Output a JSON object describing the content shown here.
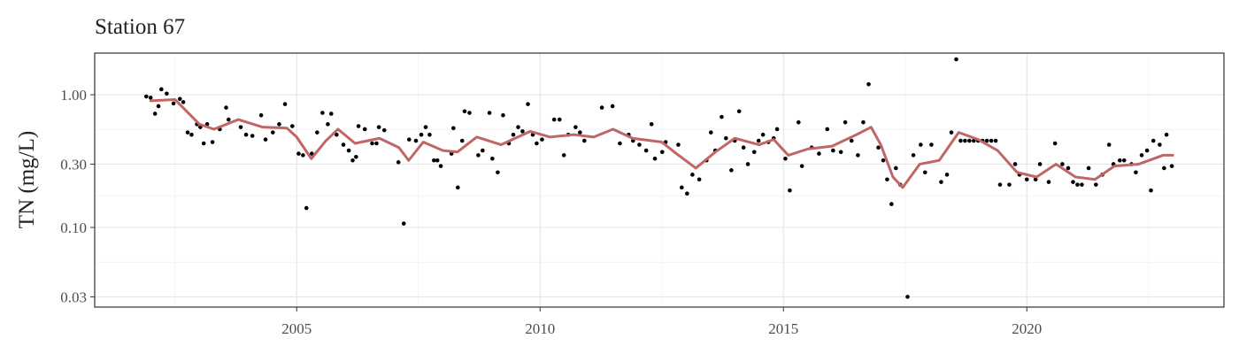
{
  "chart_data": {
    "type": "scatter",
    "title": "Station 67",
    "y_label": "TN (mg/L)",
    "log_y": true,
    "grid": true,
    "xlim": [
      2000.85,
      2024.05
    ],
    "ylim": [
      0.0251,
      2.06
    ],
    "xticks": [
      2005,
      2010,
      2015,
      2020
    ],
    "yticks": [
      {
        "value": 1,
        "label": "1.00"
      },
      {
        "value": 0.3,
        "label": "0.30"
      },
      {
        "value": 0.1,
        "label": "0.10"
      },
      {
        "value": 0.03,
        "label": "0.03"
      }
    ],
    "series": [
      {
        "type": "scatter",
        "color": "#000000",
        "x": [
          2001.91,
          2002.0,
          2002.09,
          2002.16,
          2002.22,
          2002.33,
          2002.47,
          2002.6,
          2002.67,
          2002.76,
          2002.84,
          2002.95,
          2003.02,
          2003.09,
          2003.16,
          2003.27,
          2003.42,
          2003.55,
          2003.6,
          2003.85,
          2003.96,
          2004.09,
          2004.27,
          2004.36,
          2004.51,
          2004.64,
          2004.76,
          2004.91,
          2005.04,
          2005.13,
          2005.2,
          2005.31,
          2005.42,
          2005.53,
          2005.64,
          2005.71,
          2005.82,
          2005.96,
          2006.07,
          2006.15,
          2006.22,
          2006.27,
          2006.4,
          2006.55,
          2006.64,
          2006.69,
          2006.8,
          2007.09,
          2007.2,
          2007.31,
          2007.45,
          2007.56,
          2007.65,
          2007.73,
          2007.82,
          2007.89,
          2007.96,
          2008.18,
          2008.22,
          2008.31,
          2008.4,
          2008.45,
          2008.55,
          2008.73,
          2008.82,
          2008.96,
          2009.02,
          2009.13,
          2009.24,
          2009.36,
          2009.45,
          2009.55,
          2009.64,
          2009.75,
          2009.85,
          2009.93,
          2010.04,
          2010.29,
          2010.4,
          2010.49,
          2010.58,
          2010.73,
          2010.82,
          2010.91,
          2011.27,
          2011.49,
          2011.64,
          2011.82,
          2011.91,
          2012.04,
          2012.18,
          2012.29,
          2012.36,
          2012.51,
          2012.58,
          2012.84,
          2012.91,
          2013.02,
          2013.13,
          2013.27,
          2013.42,
          2013.51,
          2013.6,
          2013.73,
          2013.82,
          2013.93,
          2014.0,
          2014.09,
          2014.18,
          2014.27,
          2014.4,
          2014.49,
          2014.58,
          2014.69,
          2014.8,
          2014.87,
          2015.04,
          2015.13,
          2015.31,
          2015.38,
          2015.58,
          2015.73,
          2015.9,
          2016.02,
          2016.18,
          2016.27,
          2016.4,
          2016.53,
          2016.64,
          2016.75,
          2016.95,
          2017.05,
          2017.13,
          2017.22,
          2017.31,
          2017.4,
          2017.55,
          2017.67,
          2017.82,
          2017.91,
          2018.04,
          2018.24,
          2018.36,
          2018.45,
          2018.55,
          2018.64,
          2018.73,
          2018.82,
          2018.91,
          2019.0,
          2019.09,
          2019.18,
          2019.27,
          2019.36,
          2019.45,
          2019.64,
          2019.76,
          2019.85,
          2020.0,
          2020.18,
          2020.27,
          2020.45,
          2020.58,
          2020.73,
          2020.85,
          2020.95,
          2021.04,
          2021.13,
          2021.27,
          2021.42,
          2021.55,
          2021.69,
          2021.78,
          2021.91,
          2022.0,
          2022.15,
          2022.24,
          2022.36,
          2022.47,
          2022.55,
          2022.6,
          2022.73,
          2022.82,
          2022.87,
          2022.98
        ],
        "values": [
          0.97,
          0.95,
          0.72,
          0.82,
          1.1,
          1.02,
          0.86,
          0.93,
          0.88,
          0.52,
          0.5,
          0.6,
          0.57,
          0.43,
          0.6,
          0.44,
          0.55,
          0.8,
          0.65,
          0.57,
          0.5,
          0.49,
          0.7,
          0.46,
          0.52,
          0.6,
          0.85,
          0.58,
          0.36,
          0.35,
          0.14,
          0.36,
          0.52,
          0.73,
          0.6,
          0.72,
          0.5,
          0.42,
          0.38,
          0.32,
          0.34,
          0.58,
          0.55,
          0.43,
          0.43,
          0.57,
          0.54,
          0.31,
          0.107,
          0.46,
          0.45,
          0.5,
          0.57,
          0.5,
          0.32,
          0.32,
          0.29,
          0.36,
          0.56,
          0.2,
          0.45,
          0.75,
          0.73,
          0.35,
          0.38,
          0.73,
          0.33,
          0.26,
          0.7,
          0.43,
          0.5,
          0.57,
          0.53,
          0.85,
          0.5,
          0.43,
          0.46,
          0.65,
          0.65,
          0.35,
          0.5,
          0.57,
          0.52,
          0.45,
          0.8,
          0.82,
          0.43,
          0.5,
          0.45,
          0.42,
          0.38,
          0.6,
          0.33,
          0.37,
          0.44,
          0.42,
          0.2,
          0.18,
          0.25,
          0.23,
          0.32,
          0.52,
          0.38,
          0.68,
          0.47,
          0.27,
          0.45,
          0.75,
          0.4,
          0.3,
          0.37,
          0.45,
          0.5,
          0.44,
          0.47,
          0.55,
          0.33,
          0.19,
          0.62,
          0.29,
          0.4,
          0.36,
          0.55,
          0.38,
          0.37,
          0.62,
          0.45,
          0.35,
          0.62,
          1.2,
          0.4,
          0.32,
          0.23,
          0.15,
          0.28,
          0.21,
          0.03,
          0.35,
          0.42,
          0.26,
          0.42,
          0.22,
          0.25,
          0.52,
          1.85,
          0.45,
          0.45,
          0.45,
          0.45,
          0.45,
          0.45,
          0.45,
          0.45,
          0.45,
          0.21,
          0.21,
          0.3,
          0.25,
          0.23,
          0.23,
          0.3,
          0.22,
          0.43,
          0.3,
          0.28,
          0.22,
          0.21,
          0.21,
          0.28,
          0.21,
          0.25,
          0.42,
          0.3,
          0.32,
          0.32,
          0.3,
          0.26,
          0.35,
          0.38,
          0.19,
          0.45,
          0.42,
          0.28,
          0.5,
          0.29
        ]
      },
      {
        "type": "line",
        "color": "#c06666",
        "x": [
          2002.0,
          2002.5,
          2003.0,
          2003.3,
          2003.8,
          2004.3,
          2004.8,
          2005.0,
          2005.3,
          2005.6,
          2005.85,
          2006.2,
          2006.7,
          2007.1,
          2007.3,
          2007.6,
          2008.0,
          2008.3,
          2008.7,
          2009.2,
          2009.8,
          2010.2,
          2010.7,
          2011.1,
          2011.5,
          2011.9,
          2012.5,
          2012.8,
          2013.2,
          2013.6,
          2014.0,
          2014.5,
          2014.8,
          2015.1,
          2015.5,
          2016.0,
          2016.5,
          2016.8,
          2017.0,
          2017.25,
          2017.45,
          2017.8,
          2018.2,
          2018.6,
          2019.0,
          2019.4,
          2019.8,
          2020.2,
          2020.6,
          2021.0,
          2021.4,
          2021.8,
          2022.3,
          2022.8,
          2023.0
        ],
        "values": [
          0.9,
          0.92,
          0.6,
          0.55,
          0.65,
          0.57,
          0.56,
          0.48,
          0.33,
          0.45,
          0.55,
          0.43,
          0.47,
          0.4,
          0.32,
          0.44,
          0.38,
          0.37,
          0.48,
          0.42,
          0.53,
          0.48,
          0.5,
          0.48,
          0.55,
          0.47,
          0.44,
          0.36,
          0.28,
          0.37,
          0.47,
          0.42,
          0.46,
          0.35,
          0.39,
          0.41,
          0.5,
          0.57,
          0.42,
          0.24,
          0.2,
          0.3,
          0.32,
          0.52,
          0.46,
          0.38,
          0.26,
          0.24,
          0.3,
          0.24,
          0.23,
          0.29,
          0.3,
          0.35,
          0.35
        ]
      }
    ]
  }
}
